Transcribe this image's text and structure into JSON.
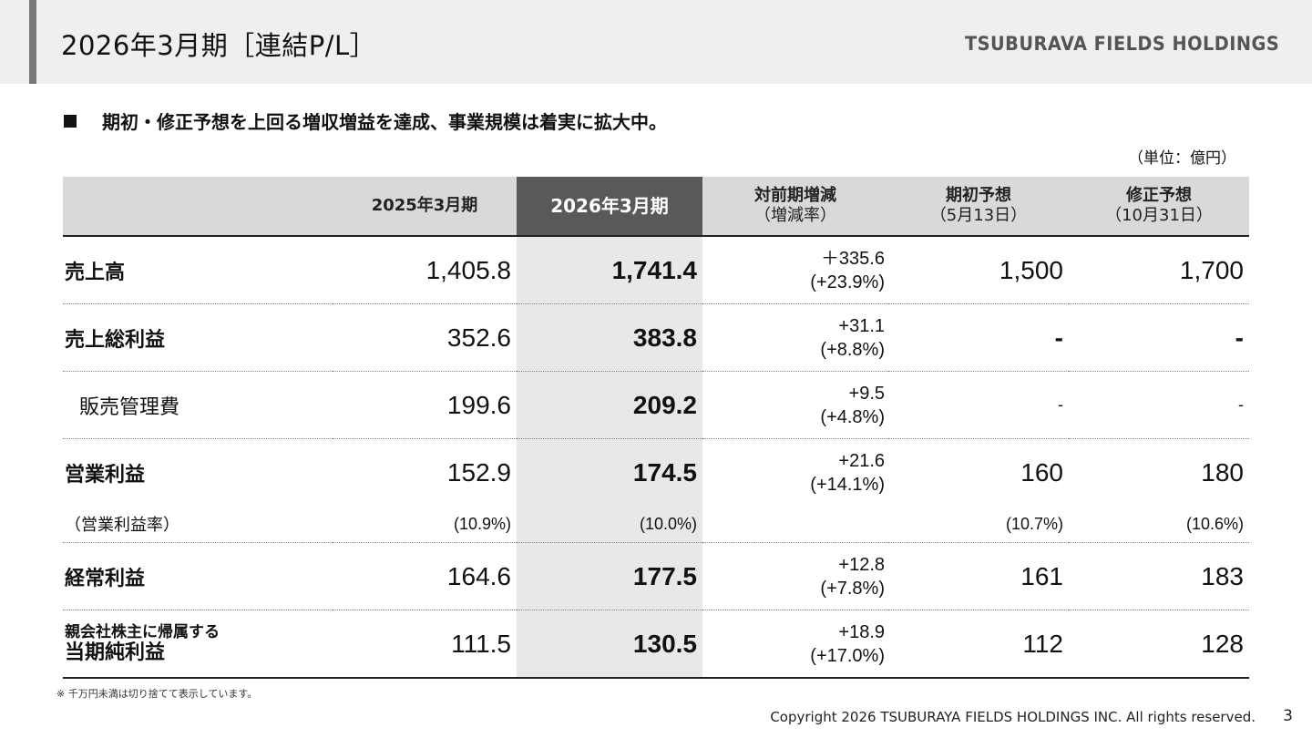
{
  "header": {
    "title": "2026年3月期［連結P/L］",
    "brand": "TSUBURAVA FIELDS HOLDINGS"
  },
  "headline": "期初・修正予想を上回る増収増益を達成、事業規模は着実に拡大中。",
  "unit_label": "（単位：億円）",
  "table": {
    "columns": {
      "prev": "2025年3月期",
      "current": "2026年3月期",
      "change_top": "対前期増減",
      "change_bottom": "（増減率）",
      "initial_top": "期初予想",
      "initial_bottom": "（5月13日）",
      "revised_top": "修正予想",
      "revised_bottom": "（10月31日）"
    },
    "rows": [
      {
        "label": "売上高",
        "prev": "1,405.8",
        "current": "1,741.4",
        "change": "＋335.6",
        "rate": "(+23.9%)",
        "initial": "1,500",
        "revised": "1,700"
      },
      {
        "label": "売上総利益",
        "prev": "352.6",
        "current": "383.8",
        "change": "+31.1",
        "rate": "(+8.8%)",
        "initial": "-",
        "revised": "-"
      },
      {
        "label": "販売管理費",
        "prev": "199.6",
        "current": "209.2",
        "change": "+9.5",
        "rate": "(+4.8%)",
        "initial": "-",
        "revised": "-"
      },
      {
        "label": "営業利益",
        "prev": "152.9",
        "current": "174.5",
        "change": "+21.6",
        "rate": "(+14.1%)",
        "initial": "160",
        "revised": "180"
      },
      {
        "label": "（営業利益率）",
        "prev": "(10.9%)",
        "current": "(10.0%)",
        "change": "",
        "rate": "",
        "initial": "(10.7%)",
        "revised": "(10.6%)"
      },
      {
        "label": "経常利益",
        "prev": "164.6",
        "current": "177.5",
        "change": "+12.8",
        "rate": "(+7.8%)",
        "initial": "161",
        "revised": "183"
      },
      {
        "label_top": "親会社株主に帰属する",
        "label_bottom": "当期純利益",
        "prev": "111.5",
        "current": "130.5",
        "change": "+18.9",
        "rate": "(+17.0%)",
        "initial": "112",
        "revised": "128"
      }
    ]
  },
  "footnote": "※ 千万円未満は切り捨てて表示しています。",
  "copyright": "Copyright 2026 TSUBURAYA FIELDS HOLDINGS INC. All rights reserved.",
  "page_number": "3",
  "colors": {
    "header_bg": "#efefef",
    "accent_bar": "#777777",
    "highlight_col_header": "#595959",
    "highlight_col_body": "#e8e8e8",
    "table_header_bg": "#d9d9d9"
  }
}
